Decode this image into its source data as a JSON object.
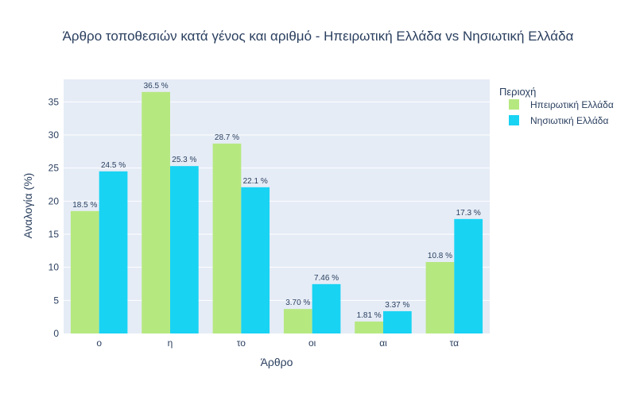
{
  "chart_data": {
    "type": "bar",
    "title": "Άρθρο τοποθεσιών κατά γένος και αριθμό - Ηπειρωτική Ελλάδα vs Νησιωτική Ελλάδα",
    "xlabel": "Άρθρο",
    "ylabel": "Αναλογία (%)",
    "categories": [
      "ο",
      "η",
      "το",
      "οι",
      "αι",
      "τα"
    ],
    "ylim": [
      0,
      38.4
    ],
    "yticks": [
      0,
      5,
      10,
      15,
      20,
      25,
      30,
      35
    ],
    "grid": true,
    "legend_title": "Περιοχή",
    "legend_position": "top-right",
    "series": [
      {
        "name": "Ηπειρωτική Ελλάδα",
        "color": "#b6e880",
        "values": [
          18.5,
          36.5,
          28.7,
          3.7,
          1.81,
          10.8
        ],
        "labels": [
          "18.5 %",
          "36.5 %",
          "28.7 %",
          "3.70 %",
          "1.81 %",
          "10.8 %"
        ]
      },
      {
        "name": "Νησιωτική Ελλάδα",
        "color": "#19d3f3",
        "values": [
          24.5,
          25.3,
          22.1,
          7.46,
          3.37,
          17.3
        ],
        "labels": [
          "24.5 %",
          "25.3 %",
          "22.1 %",
          "7.46 %",
          "3.37 %",
          "17.3 %"
        ]
      }
    ],
    "plot_bgcolor": "#e5ecf6",
    "gridcolor": "#ffffff"
  }
}
